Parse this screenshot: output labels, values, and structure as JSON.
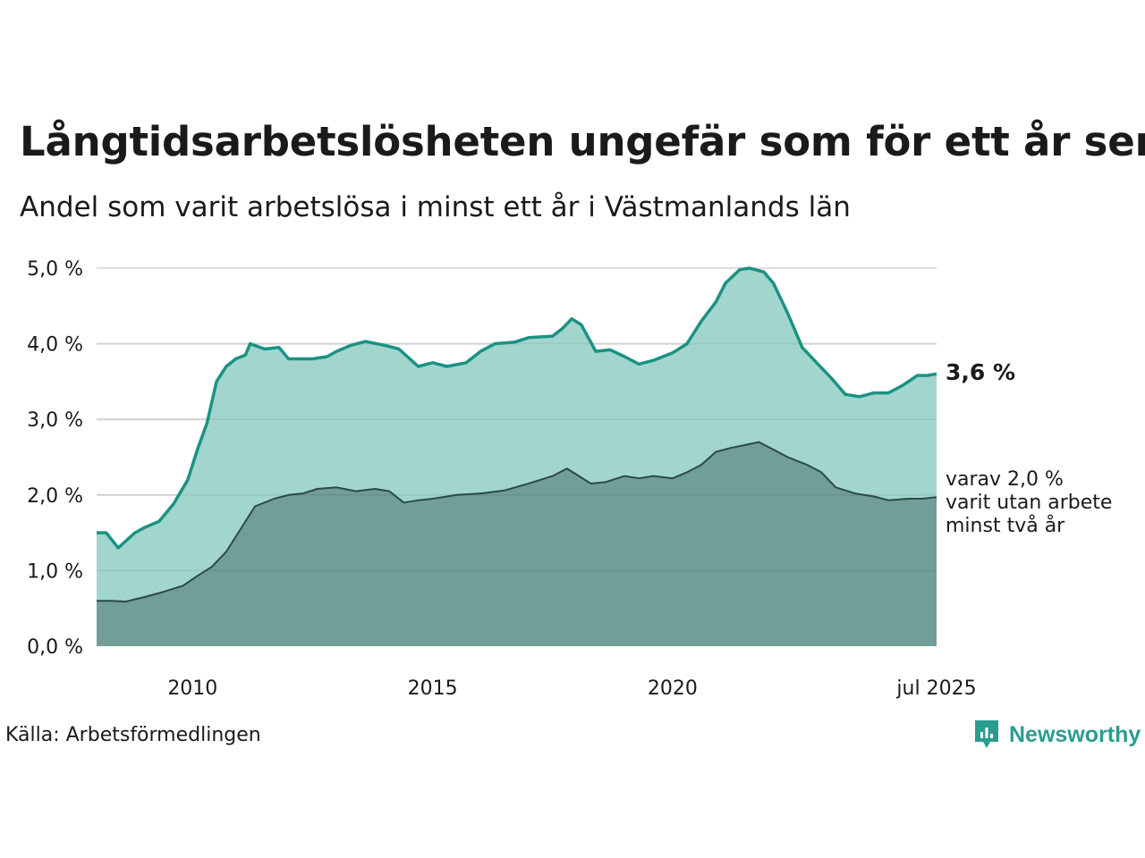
{
  "title": "Långtidsarbetslösheten ungefär som för ett år sen",
  "subtitle": "Andel som varit arbetslösa i minst ett år i Västmanlands län",
  "source": "Källa: Arbetsförmedlingen",
  "brand": {
    "name": "Newsworthy",
    "icon": "newsworthy-logo-icon",
    "color": "#2a9d8f"
  },
  "annotations": {
    "latest_value": "3,6 %",
    "sub_lines": [
      "varav 2,0 %",
      "varit utan arbete",
      "minst två år"
    ]
  },
  "chart_data": {
    "type": "area",
    "x_unit": "year",
    "xlim": [
      2008.0,
      2025.5
    ],
    "ylim": [
      0,
      5
    ],
    "y_ticks": [
      0,
      1,
      2,
      3,
      4,
      5
    ],
    "y_tick_labels": [
      "0,0 %",
      "1,0 %",
      "2,0 %",
      "3,0 %",
      "4,0 %",
      "5,0 %"
    ],
    "x_ticks": [
      2010,
      2015,
      2020,
      2025.5
    ],
    "x_tick_labels": [
      "2010",
      "2015",
      "2020",
      "jul 2025"
    ],
    "grid": true,
    "colors": {
      "series1_fill": "#a3d5cf",
      "series1_line": "#1a9283",
      "series2_fill": "#719e97",
      "series2_line": "#2c4a45",
      "grid": "#dedede"
    },
    "series": [
      {
        "points": [
          [
            2008.0,
            1.5
          ],
          [
            2008.2,
            1.5
          ],
          [
            2008.45,
            1.3
          ],
          [
            2008.8,
            1.5
          ],
          [
            2009.0,
            1.57
          ],
          [
            2009.3,
            1.65
          ],
          [
            2009.6,
            1.88
          ],
          [
            2009.9,
            2.2
          ],
          [
            2010.1,
            2.6
          ],
          [
            2010.3,
            2.95
          ],
          [
            2010.5,
            3.5
          ],
          [
            2010.7,
            3.7
          ],
          [
            2010.9,
            3.8
          ],
          [
            2011.1,
            3.85
          ],
          [
            2011.2,
            4.0
          ],
          [
            2011.5,
            3.93
          ],
          [
            2011.8,
            3.95
          ],
          [
            2012.0,
            3.8
          ],
          [
            2012.5,
            3.8
          ],
          [
            2012.8,
            3.83
          ],
          [
            2013.0,
            3.9
          ],
          [
            2013.3,
            3.98
          ],
          [
            2013.6,
            4.03
          ],
          [
            2014.0,
            3.98
          ],
          [
            2014.3,
            3.93
          ],
          [
            2014.7,
            3.7
          ],
          [
            2015.0,
            3.75
          ],
          [
            2015.3,
            3.7
          ],
          [
            2015.7,
            3.75
          ],
          [
            2016.0,
            3.9
          ],
          [
            2016.3,
            4.0
          ],
          [
            2016.7,
            4.02
          ],
          [
            2017.0,
            4.08
          ],
          [
            2017.5,
            4.1
          ],
          [
            2017.7,
            4.2
          ],
          [
            2017.9,
            4.33
          ],
          [
            2018.1,
            4.25
          ],
          [
            2018.4,
            3.9
          ],
          [
            2018.7,
            3.92
          ],
          [
            2019.0,
            3.83
          ],
          [
            2019.3,
            3.73
          ],
          [
            2019.6,
            3.78
          ],
          [
            2020.0,
            3.88
          ],
          [
            2020.3,
            4.0
          ],
          [
            2020.6,
            4.3
          ],
          [
            2020.9,
            4.55
          ],
          [
            2021.1,
            4.8
          ],
          [
            2021.4,
            4.98
          ],
          [
            2021.6,
            5.0
          ],
          [
            2021.9,
            4.95
          ],
          [
            2022.1,
            4.8
          ],
          [
            2022.4,
            4.4
          ],
          [
            2022.7,
            3.95
          ],
          [
            2023.0,
            3.75
          ],
          [
            2023.3,
            3.55
          ],
          [
            2023.6,
            3.33
          ],
          [
            2023.9,
            3.3
          ],
          [
            2024.2,
            3.35
          ],
          [
            2024.5,
            3.35
          ],
          [
            2024.8,
            3.45
          ],
          [
            2025.1,
            3.58
          ],
          [
            2025.3,
            3.58
          ],
          [
            2025.5,
            3.6
          ]
        ]
      },
      {
        "points": [
          [
            2008.0,
            0.6
          ],
          [
            2008.3,
            0.6
          ],
          [
            2008.6,
            0.59
          ],
          [
            2009.0,
            0.65
          ],
          [
            2009.4,
            0.72
          ],
          [
            2009.8,
            0.8
          ],
          [
            2010.1,
            0.93
          ],
          [
            2010.4,
            1.05
          ],
          [
            2010.7,
            1.25
          ],
          [
            2011.0,
            1.55
          ],
          [
            2011.3,
            1.85
          ],
          [
            2011.7,
            1.95
          ],
          [
            2012.0,
            2.0
          ],
          [
            2012.3,
            2.02
          ],
          [
            2012.6,
            2.08
          ],
          [
            2013.0,
            2.1
          ],
          [
            2013.4,
            2.05
          ],
          [
            2013.8,
            2.08
          ],
          [
            2014.1,
            2.05
          ],
          [
            2014.4,
            1.9
          ],
          [
            2014.7,
            1.93
          ],
          [
            2015.0,
            1.95
          ],
          [
            2015.5,
            2.0
          ],
          [
            2016.0,
            2.02
          ],
          [
            2016.5,
            2.06
          ],
          [
            2017.0,
            2.15
          ],
          [
            2017.5,
            2.25
          ],
          [
            2017.8,
            2.35
          ],
          [
            2018.0,
            2.27
          ],
          [
            2018.3,
            2.15
          ],
          [
            2018.6,
            2.17
          ],
          [
            2019.0,
            2.25
          ],
          [
            2019.3,
            2.22
          ],
          [
            2019.6,
            2.25
          ],
          [
            2020.0,
            2.22
          ],
          [
            2020.3,
            2.3
          ],
          [
            2020.6,
            2.4
          ],
          [
            2020.9,
            2.57
          ],
          [
            2021.2,
            2.62
          ],
          [
            2021.5,
            2.66
          ],
          [
            2021.8,
            2.7
          ],
          [
            2022.1,
            2.6
          ],
          [
            2022.4,
            2.5
          ],
          [
            2022.8,
            2.4
          ],
          [
            2023.1,
            2.3
          ],
          [
            2023.4,
            2.1
          ],
          [
            2023.8,
            2.02
          ],
          [
            2024.2,
            1.98
          ],
          [
            2024.5,
            1.93
          ],
          [
            2024.9,
            1.95
          ],
          [
            2025.2,
            1.95
          ],
          [
            2025.5,
            1.97
          ]
        ]
      }
    ]
  }
}
